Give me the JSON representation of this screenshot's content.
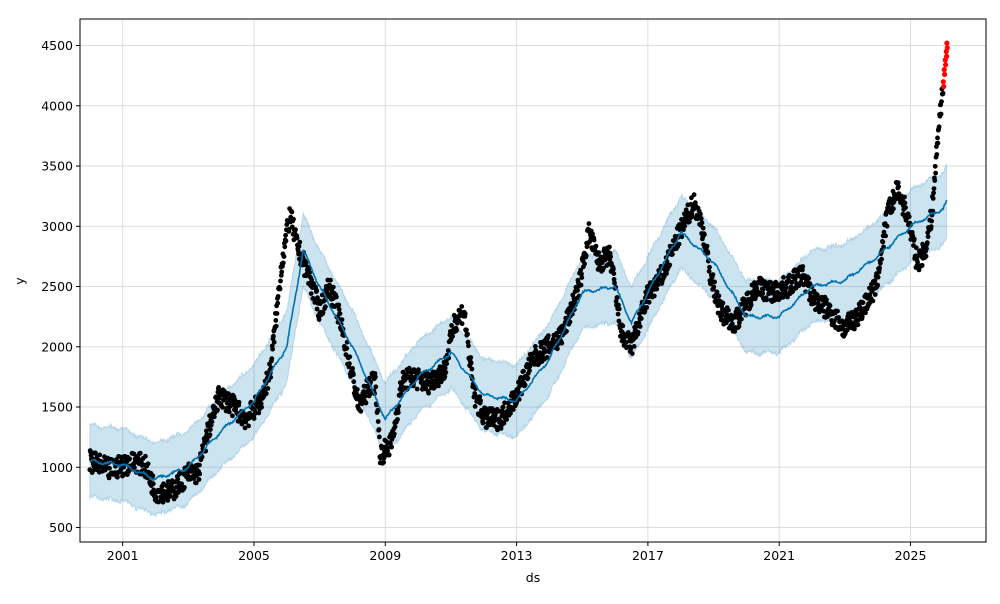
{
  "chart_data": {
    "type": "scatter",
    "title": "",
    "xlabel": "ds",
    "ylabel": "y",
    "xlim": [
      1999.7,
      2027.3
    ],
    "ylim": [
      380,
      4720
    ],
    "xticks": [
      2001,
      2005,
      2009,
      2013,
      2017,
      2021,
      2025
    ],
    "xtick_labels": [
      "2001",
      "2005",
      "2009",
      "2013",
      "2017",
      "2021",
      "2025"
    ],
    "yticks": [
      500,
      1000,
      1500,
      2000,
      2500,
      3000,
      3500,
      4000,
      4500
    ],
    "ytick_labels": [
      "500",
      "1000",
      "1500",
      "2000",
      "2500",
      "3000",
      "3500",
      "4000",
      "4500"
    ],
    "grid": true,
    "colors": {
      "observed": "#000000",
      "recent": "#ff0000",
      "forecast": "#0072B2",
      "interval": "#0072B2"
    },
    "series": [
      {
        "name": "observed",
        "kind": "points",
        "x": [
          2000.0,
          2000.6,
          2001.4,
          2001.7,
          2002.0,
          2002.5,
          2003.0,
          2003.3,
          2003.6,
          2003.95,
          2004.4,
          2004.75,
          2005.2,
          2005.5,
          2005.85,
          2006.1,
          2006.3,
          2006.65,
          2007.0,
          2007.3,
          2007.55,
          2007.8,
          2008.2,
          2008.55,
          2008.7,
          2008.85,
          2009.2,
          2009.5,
          2009.8,
          2010.3,
          2010.8,
          2011.1,
          2011.4,
          2011.7,
          2012.05,
          2012.5,
          2013.0,
          2013.5,
          2013.95,
          2014.4,
          2014.9,
          2015.2,
          2015.5,
          2015.85,
          2016.2,
          2016.5,
          2016.95,
          2017.45,
          2017.9,
          2018.4,
          2018.65,
          2018.9,
          2019.2,
          2019.65,
          2020.3,
          2020.8,
          2021.25,
          2021.7,
          2022.05,
          2022.5,
          2023.0,
          2023.5,
          2023.95,
          2024.3,
          2024.6,
          2024.9,
          2025.2,
          2025.45,
          2025.65,
          2025.85,
          2026.0
        ],
        "y": [
          1050,
          980,
          1050,
          1000,
          800,
          800,
          950,
          950,
          1300,
          1600,
          1500,
          1400,
          1550,
          1800,
          2700,
          3100,
          2850,
          2600,
          2300,
          2500,
          2300,
          2000,
          1500,
          1700,
          1700,
          1100,
          1200,
          1700,
          1750,
          1700,
          1800,
          2200,
          2300,
          1600,
          1400,
          1400,
          1600,
          1900,
          2000,
          2100,
          2500,
          2950,
          2700,
          2750,
          2100,
          2000,
          2400,
          2600,
          2900,
          3200,
          3000,
          2600,
          2300,
          2200,
          2500,
          2450,
          2500,
          2600,
          2400,
          2300,
          2150,
          2300,
          2500,
          3100,
          3300,
          3100,
          2700,
          2800,
          3100,
          3800,
          4200
        ]
      },
      {
        "name": "recent",
        "kind": "points",
        "x": [
          2026.0,
          2026.03,
          2026.06,
          2026.09,
          2026.11
        ],
        "y": [
          4200,
          4300,
          4380,
          4450,
          4520
        ]
      },
      {
        "name": "yhat",
        "kind": "line",
        "x": [
          2000,
          2001,
          2002,
          2003,
          2004,
          2005,
          2006,
          2006.5,
          2007,
          2008,
          2009,
          2010,
          2011,
          2012,
          2013,
          2014,
          2015,
          2016,
          2016.5,
          2017,
          2018,
          2019,
          2020,
          2021,
          2022,
          2023,
          2024,
          2025,
          2026,
          2026.1
        ],
        "y": [
          1050,
          1020,
          900,
          1000,
          1300,
          1550,
          2000,
          2800,
          2500,
          2000,
          1400,
          1750,
          1950,
          1600,
          1550,
          1900,
          2450,
          2500,
          2200,
          2450,
          2950,
          2700,
          2250,
          2250,
          2500,
          2550,
          2750,
          3000,
          3150,
          3200
        ]
      },
      {
        "name": "uncertainty_interval",
        "kind": "band",
        "half_width": 300
      }
    ]
  }
}
